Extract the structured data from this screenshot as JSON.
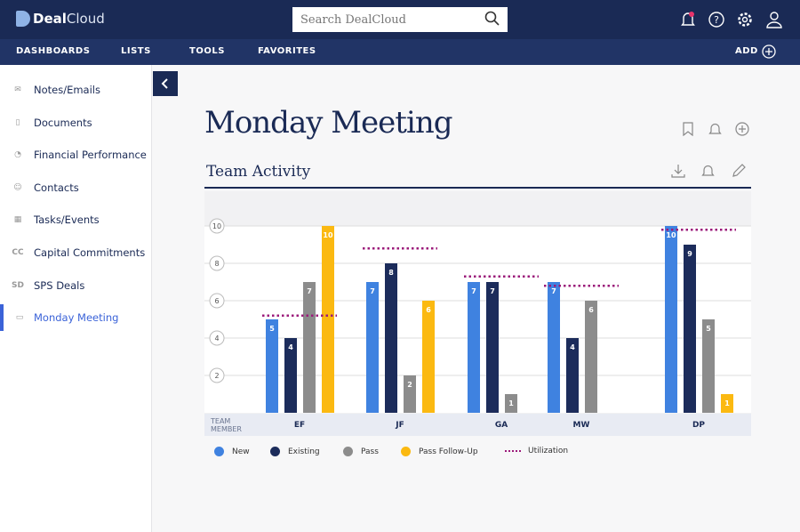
{
  "app": {
    "brand_bold": "Deal",
    "brand_light": "Cloud",
    "search_placeholder": "Search DealCloud"
  },
  "nav": {
    "items": [
      "DASHBOARDS",
      "LISTS",
      "TOOLS",
      "FAVORITES"
    ],
    "add": "ADD"
  },
  "sidebar": {
    "items": [
      {
        "icon": "envelope-icon",
        "glyph": "✉",
        "label": "Notes/Emails"
      },
      {
        "icon": "document-icon",
        "glyph": "▯",
        "label": "Documents"
      },
      {
        "icon": "pie-chart-icon",
        "glyph": "◔",
        "label": "Financial Performance"
      },
      {
        "icon": "contacts-icon",
        "glyph": "☺",
        "label": "Contacts"
      },
      {
        "icon": "calendar-icon",
        "glyph": "▦",
        "label": "Tasks/Events"
      },
      {
        "icon": "cc-icon",
        "glyph": "CC",
        "label": "Capital Commitments"
      },
      {
        "icon": "sd-icon",
        "glyph": "SD",
        "label": "SPS Deals"
      },
      {
        "icon": "briefcase-icon",
        "glyph": "▭",
        "label": "Monday Meeting"
      }
    ],
    "active": 7
  },
  "page": {
    "title": "Monday Meeting",
    "section": "Team Activity"
  },
  "colors": {
    "New": "#3f82e0",
    "Existing": "#1c2c5b",
    "Pass": "#8c8c8c",
    "Pass Follow-Up": "#fbb911",
    "Utilization": "#9b1a7a"
  },
  "chart_data": {
    "type": "bar",
    "title": "Team Activity",
    "xlabel": "TEAM MEMBER",
    "categories": [
      "EF",
      "JF",
      "GA",
      "MW",
      "DP"
    ],
    "yticks": [
      2,
      4,
      6,
      8,
      10
    ],
    "ylim": [
      0,
      10
    ],
    "series": [
      {
        "name": "New",
        "values": [
          5,
          7,
          7,
          7,
          10
        ]
      },
      {
        "name": "Existing",
        "values": [
          4,
          8,
          7,
          4,
          9
        ]
      },
      {
        "name": "Pass",
        "values": [
          7,
          2,
          1,
          6,
          5
        ]
      },
      {
        "name": "Pass Follow-Up",
        "values": [
          10,
          6,
          null,
          null,
          1
        ]
      }
    ],
    "utilization": {
      "name": "Utilization",
      "values": [
        5.2,
        8.8,
        7.3,
        6.8,
        9.8
      ]
    },
    "legend": [
      "New",
      "Existing",
      "Pass",
      "Pass Follow-Up",
      "Utilization"
    ],
    "legend_position": "bottom-left",
    "grid": true
  }
}
